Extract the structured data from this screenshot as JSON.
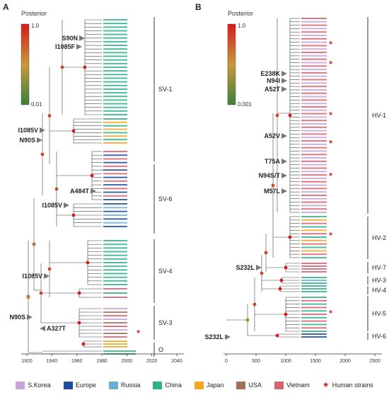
{
  "panels": {
    "a": {
      "letter": "A",
      "colorbar_title": "Posterior",
      "cb_max": "1.0",
      "cb_min": "0.01",
      "clades": [
        "SV-1",
        "SV-6",
        "SV-4",
        "SV-3",
        "O"
      ],
      "mutations": [
        "S90N",
        "I1085F",
        "I1085V",
        "N90S",
        "A484T",
        "I1085V",
        "I1085V",
        "N90S",
        "A327T"
      ],
      "axis_ticks": [
        "1920",
        "1940",
        "1960",
        "1980",
        "2000",
        "2020",
        "2040"
      ]
    },
    "b": {
      "letter": "B",
      "colorbar_title": "Posterior",
      "cb_max": "1.0",
      "cb_min": "0.001",
      "clades": [
        "HV-1",
        "HV-2",
        "HV-7",
        "HV-3",
        "HV-4",
        "HV-5",
        "HV-6"
      ],
      "mutations": [
        "E238K",
        "N94I",
        "A52T",
        "A52V",
        "T75A",
        "N94S/T",
        "M57L",
        "S232L",
        "S232L"
      ],
      "axis_ticks": [
        "0",
        "500",
        "1000",
        "1500",
        "2000",
        "2500"
      ]
    }
  },
  "legend": [
    {
      "label": "S.Korea",
      "color": "#c8a2d8",
      "icon": "swatch"
    },
    {
      "label": "Europe",
      "color": "#1f4e9e",
      "icon": "swatch"
    },
    {
      "label": "Russia",
      "color": "#6aaed6",
      "icon": "swatch"
    },
    {
      "label": "China",
      "color": "#2db38a",
      "icon": "swatch"
    },
    {
      "label": "Japan",
      "color": "#f5a623",
      "icon": "swatch"
    },
    {
      "label": "USA",
      "color": "#a0705a",
      "icon": "swatch"
    },
    {
      "label": "Vietnam",
      "color": "#d9606f",
      "icon": "swatch"
    },
    {
      "label": "Human strains",
      "color": "#d62728",
      "icon": "star"
    }
  ]
}
